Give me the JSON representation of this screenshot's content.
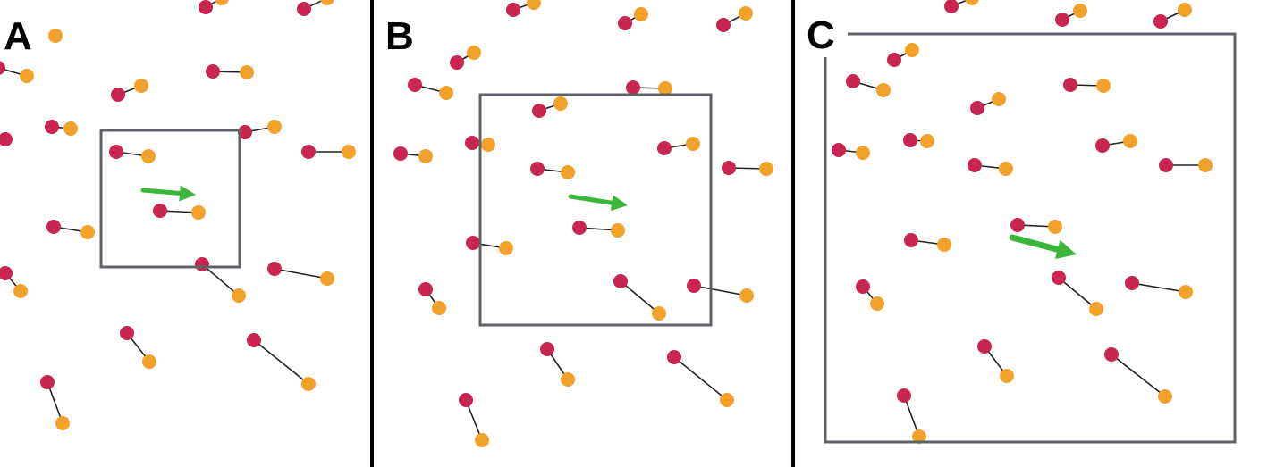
{
  "panels": [
    {
      "label": "A",
      "dipoles": [
        [
          230,
          8,
          248,
          -2
        ],
        [
          340,
          10,
          366,
          -2
        ],
        [
          -2,
          76,
          30,
          85
        ],
        [
          132,
          106,
          158,
          96
        ],
        [
          238,
          80,
          276,
          81
        ],
        [
          58,
          142,
          79,
          144
        ],
        [
          274,
          148,
          307,
          142
        ],
        [
          6,
          156,
          -12,
          156
        ],
        [
          130,
          170,
          166,
          175
        ],
        [
          345,
          170,
          390,
          170
        ],
        [
          179,
          236,
          222,
          238
        ],
        [
          60,
          254,
          98,
          260
        ],
        [
          6,
          306,
          23,
          326
        ],
        [
          226,
          296,
          267,
          331
        ],
        [
          307,
          301,
          366,
          312
        ],
        [
          142,
          373,
          167,
          405
        ],
        [
          284,
          381,
          345,
          430
        ],
        [
          53,
          428,
          70,
          474
        ]
      ],
      "dots": [
        [
          62,
          40
        ]
      ],
      "box": [
        113,
        146,
        268,
        299
      ],
      "arrow": [
        160,
        213,
        219,
        218
      ]
    },
    {
      "label": "B",
      "dipoles": [
        [
          574,
          11,
          597,
          3
        ],
        [
          699,
          26,
          717,
          16
        ],
        [
          809,
          28,
          834,
          15
        ],
        [
          511,
          70,
          530,
          59
        ],
        [
          464,
          95,
          499,
          104
        ],
        [
          708,
          98,
          744,
          99
        ],
        [
          603,
          124,
          627,
          116
        ],
        [
          528,
          160,
          546,
          162
        ],
        [
          448,
          172,
          476,
          175
        ],
        [
          743,
          166,
          775,
          161
        ],
        [
          601,
          189,
          635,
          193
        ],
        [
          815,
          188,
          857,
          189
        ],
        [
          648,
          255,
          691,
          258
        ],
        [
          529,
          272,
          566,
          278
        ],
        [
          476,
          324,
          491,
          345
        ],
        [
          694,
          315,
          737,
          351
        ],
        [
          776,
          320,
          835,
          331
        ],
        [
          612,
          391,
          635,
          425
        ],
        [
          754,
          400,
          813,
          448
        ],
        [
          521,
          448,
          539,
          493
        ]
      ],
      "dots": [],
      "box": [
        537,
        106,
        795,
        364
      ],
      "arrow": [
        638,
        220,
        702,
        230
      ]
    },
    {
      "label": "C",
      "dipoles": [
        [
          1064,
          7,
          1087,
          -2
        ],
        [
          1188,
          22,
          1208,
          12
        ],
        [
          1298,
          24,
          1325,
          11
        ],
        [
          1000,
          67,
          1020,
          56
        ],
        [
          954,
          91,
          988,
          101
        ],
        [
          1197,
          95,
          1234,
          96
        ],
        [
          1093,
          121,
          1117,
          111
        ],
        [
          1018,
          157,
          1037,
          158
        ],
        [
          938,
          168,
          965,
          171
        ],
        [
          1233,
          163,
          1264,
          158
        ],
        [
          1090,
          185,
          1125,
          189
        ],
        [
          1304,
          185,
          1348,
          185
        ],
        [
          1138,
          252,
          1180,
          254
        ],
        [
          1019,
          269,
          1056,
          274
        ],
        [
          965,
          321,
          981,
          340
        ],
        [
          1184,
          311,
          1226,
          346
        ],
        [
          1266,
          317,
          1326,
          327
        ],
        [
          1101,
          388,
          1126,
          421
        ],
        [
          1243,
          397,
          1303,
          444
        ],
        [
          1011,
          443,
          1028,
          489
        ]
      ],
      "dots": [],
      "box": [
        923,
        38,
        1381,
        495
      ],
      "arrow": [
        1132,
        266,
        1204,
        285
      ]
    }
  ],
  "colors": {
    "red": "#c8254f",
    "orange": "#f2a12a",
    "box": "#5f6368",
    "arrow": "#3cb63a",
    "line": "#222222",
    "divider": "#000000"
  }
}
